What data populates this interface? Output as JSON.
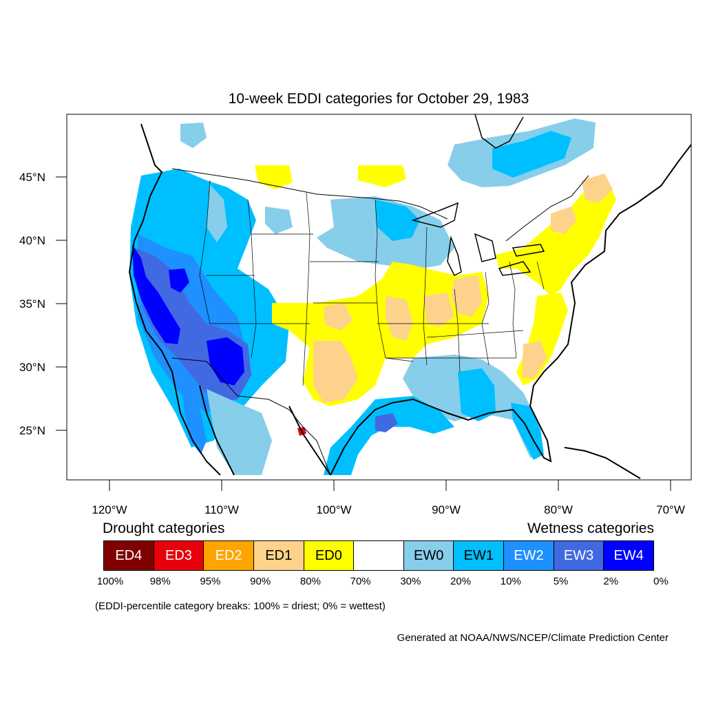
{
  "title": "10-week EDDI categories for October 29, 1983",
  "lat_ticks": [
    {
      "value": 45,
      "label": "45°N"
    },
    {
      "value": 40,
      "label": "40°N"
    },
    {
      "value": 35,
      "label": "35°N"
    },
    {
      "value": 30,
      "label": "30°N"
    },
    {
      "value": 25,
      "label": "25°N"
    }
  ],
  "lon_ticks": [
    {
      "value": -120,
      "label": "120°W"
    },
    {
      "value": -110,
      "label": "110°W"
    },
    {
      "value": -100,
      "label": "100°W"
    },
    {
      "value": -90,
      "label": "90°W"
    },
    {
      "value": -80,
      "label": "80°W"
    },
    {
      "value": -70,
      "label": "70°W"
    }
  ],
  "legend": {
    "drought_heading": "Drought categories",
    "wetness_heading": "Wetness categories",
    "categories": [
      {
        "label": "ED4",
        "color": "#800000",
        "text_color": "#ffffff"
      },
      {
        "label": "ED3",
        "color": "#e8000b",
        "text_color": "#ffffff"
      },
      {
        "label": "ED2",
        "color": "#ffa500",
        "text_color": "#ffffff"
      },
      {
        "label": "ED1",
        "color": "#fdd38c",
        "text_color": "#000000"
      },
      {
        "label": "ED0",
        "color": "#ffff00",
        "text_color": "#000000"
      },
      {
        "label": "",
        "color": "#ffffff",
        "text_color": "#000000"
      },
      {
        "label": "EW0",
        "color": "#87ceeb",
        "text_color": "#000000"
      },
      {
        "label": "EW1",
        "color": "#00bfff",
        "text_color": "#000000"
      },
      {
        "label": "EW2",
        "color": "#1e90ff",
        "text_color": "#ffffff"
      },
      {
        "label": "EW3",
        "color": "#4169e1",
        "text_color": "#ffffff"
      },
      {
        "label": "EW4",
        "color": "#0000ff",
        "text_color": "#ffffff"
      }
    ],
    "breaks": [
      "100%",
      "98%",
      "95%",
      "90%",
      "80%",
      "70%",
      "30%",
      "20%",
      "10%",
      "5%",
      "2%",
      "0%"
    ]
  },
  "note": "(EDDI-percentile category breaks: 100% = driest; 0% = wettest)",
  "credit": "Generated at NOAA/NWS/NCEP/Climate Prediction Center"
}
